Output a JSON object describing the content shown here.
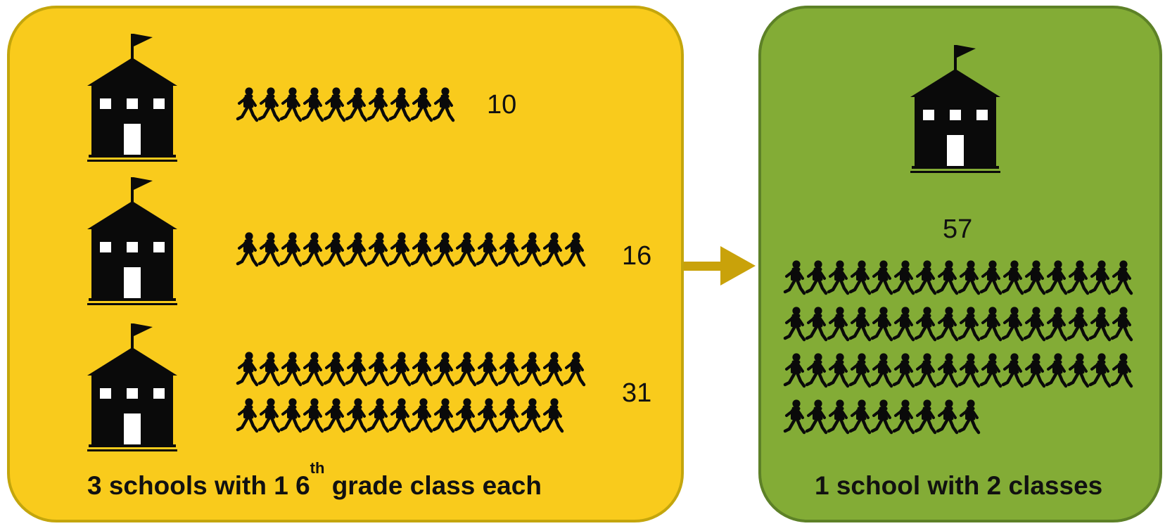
{
  "diagram": {
    "before": {
      "caption_prefix": "3 schools with 1 6",
      "caption_sup": "th",
      "caption_suffix": " grade class each",
      "schools": [
        {
          "icon": "school-building-icon",
          "students": 10,
          "count_label": "10"
        },
        {
          "icon": "school-building-icon",
          "students": 16,
          "count_label": "16"
        },
        {
          "icon": "school-building-icon",
          "students": 31,
          "count_label": "31"
        }
      ]
    },
    "after": {
      "caption": "1 school with 2 classes",
      "school": {
        "icon": "school-building-icon",
        "students": 57,
        "count_label": "57"
      }
    },
    "arrow": {
      "icon": "arrow-right-icon"
    },
    "student_icon": "student-walking-icon",
    "colors": {
      "before_fill": "#f9cb1c",
      "before_border": "#c4a60c",
      "after_fill": "#83ac36",
      "after_border": "#5d8127",
      "arrow": "#c9a20a",
      "icon": "#0a0a0a"
    }
  }
}
